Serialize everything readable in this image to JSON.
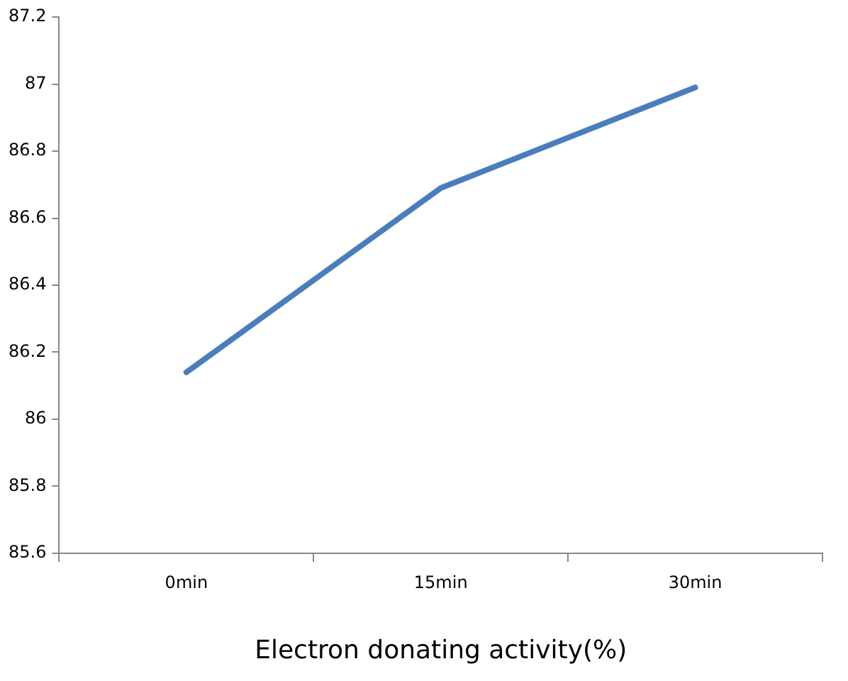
{
  "chart_data": {
    "type": "line",
    "xlabel": "Electron donating activity(%)",
    "categories": [
      "0min",
      "15min",
      "30min"
    ],
    "series": [
      {
        "color": "#4a7ebb",
        "values": [
          86.14,
          86.69,
          86.99
        ]
      }
    ],
    "ylim": [
      85.6,
      87.2
    ],
    "yticks": [
      85.6,
      85.8,
      86,
      86.2,
      86.4,
      86.6,
      86.8,
      87,
      87.2
    ],
    "grid": false,
    "legend": false,
    "marker": "none",
    "line_style": "solid"
  }
}
